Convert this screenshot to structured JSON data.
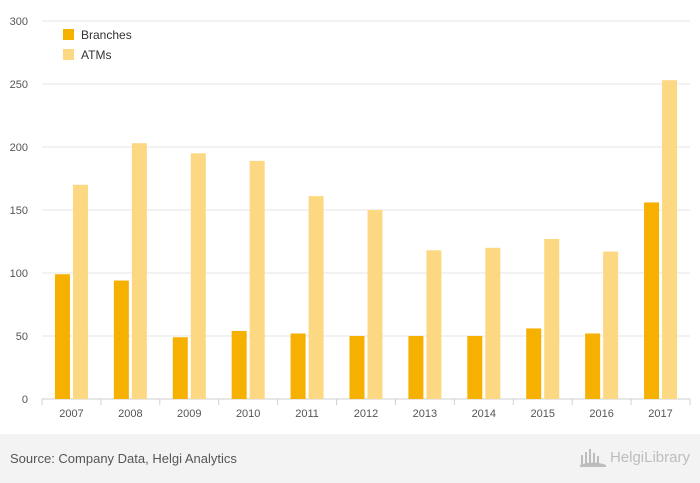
{
  "chart_data": {
    "type": "bar",
    "categories": [
      "2007",
      "2008",
      "2009",
      "2010",
      "2011",
      "2012",
      "2013",
      "2014",
      "2015",
      "2016",
      "2017"
    ],
    "series": [
      {
        "name": "Branches",
        "color": "#f5b000",
        "values": [
          99,
          94,
          49,
          54,
          52,
          50,
          50,
          50,
          56,
          52,
          156
        ]
      },
      {
        "name": "ATMs",
        "color": "#fdd882",
        "values": [
          170,
          203,
          195,
          189,
          161,
          150,
          118,
          120,
          127,
          117,
          253
        ]
      }
    ],
    "y_ticks": [
      "0",
      "50",
      "100",
      "150",
      "200",
      "250",
      "300"
    ],
    "ylim": [
      0,
      300
    ],
    "grid": true,
    "legend_position": "top-left"
  },
  "footer": {
    "source": "Source: Company Data, Helgi Analytics",
    "brand": "HelgiLibrary"
  },
  "colors": {
    "grid": "#e6e6e6",
    "footer_bg": "#f3f3f3",
    "brand": "#bdbdbd"
  },
  "icons": {
    "brand_logo": "helgi-library-logo-icon"
  }
}
